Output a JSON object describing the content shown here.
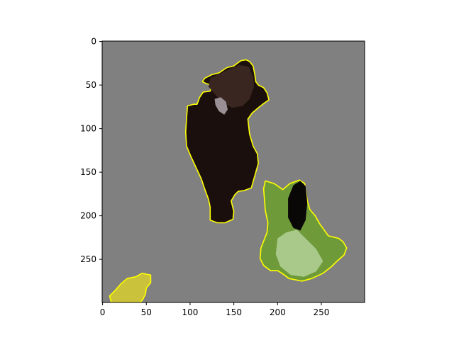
{
  "chart_data": {
    "type": "heatmap",
    "title": "",
    "xlabel": "",
    "ylabel": "",
    "xlim": [
      -0.5,
      299.5
    ],
    "ylim": [
      299.5,
      -0.5
    ],
    "y_inverted": true,
    "x_ticks": [
      0,
      50,
      100,
      150,
      200,
      250
    ],
    "y_ticks": [
      0,
      50,
      100,
      150,
      200,
      250
    ],
    "grid": false,
    "colors": {
      "background": "#808080",
      "outline": "#ffff00",
      "dark_object": "#1a0f0c",
      "brown_fur": "#2e1c16",
      "grass": "#6f9a3a",
      "grass_light": "#a9c98a",
      "beak": "#9a8f95"
    },
    "regions": [
      {
        "name": "dark-animal",
        "fill": "#1a0f0c",
        "outline": "#ffff00",
        "points": [
          [
            97,
            74
          ],
          [
            104,
            72
          ],
          [
            108,
            72
          ],
          [
            111,
            64
          ],
          [
            115,
            58
          ],
          [
            123,
            57
          ],
          [
            124,
            50
          ],
          [
            118,
            48
          ],
          [
            114,
            46
          ],
          [
            117,
            42
          ],
          [
            125,
            38
          ],
          [
            133,
            36
          ],
          [
            142,
            30
          ],
          [
            150,
            28
          ],
          [
            158,
            22
          ],
          [
            164,
            21
          ],
          [
            168,
            23
          ],
          [
            172,
            28
          ],
          [
            174,
            38
          ],
          [
            175,
            46
          ],
          [
            178,
            50
          ],
          [
            184,
            53
          ],
          [
            188,
            59
          ],
          [
            190,
            67
          ],
          [
            183,
            72
          ],
          [
            178,
            76
          ],
          [
            171,
            82
          ],
          [
            166,
            89
          ],
          [
            168,
            106
          ],
          [
            172,
            120
          ],
          [
            177,
            129
          ],
          [
            178,
            140
          ],
          [
            174,
            154
          ],
          [
            170,
            168
          ],
          [
            162,
            171
          ],
          [
            155,
            172
          ],
          [
            151,
            176
          ],
          [
            147,
            183
          ],
          [
            150,
            195
          ],
          [
            149,
            204
          ],
          [
            140,
            208
          ],
          [
            131,
            208
          ],
          [
            123,
            205
          ],
          [
            123,
            190
          ],
          [
            121,
            181
          ],
          [
            117,
            170
          ],
          [
            113,
            158
          ],
          [
            107,
            145
          ],
          [
            101,
            132
          ],
          [
            96,
            120
          ],
          [
            95,
            104
          ],
          [
            96,
            88
          ]
        ]
      },
      {
        "name": "grass-patch-right",
        "fill": "#6f9a3a",
        "outline": "#ffff00",
        "points": [
          [
            186,
            160
          ],
          [
            196,
            163
          ],
          [
            206,
            170
          ],
          [
            214,
            163
          ],
          [
            225,
            159
          ],
          [
            231,
            163
          ],
          [
            234,
            183
          ],
          [
            237,
            193
          ],
          [
            243,
            200
          ],
          [
            248,
            209
          ],
          [
            258,
            223
          ],
          [
            270,
            226
          ],
          [
            275,
            230
          ],
          [
            279,
            237
          ],
          [
            276,
            245
          ],
          [
            268,
            252
          ],
          [
            262,
            258
          ],
          [
            252,
            266
          ],
          [
            239,
            272
          ],
          [
            228,
            275
          ],
          [
            213,
            272
          ],
          [
            205,
            266
          ],
          [
            200,
            263
          ],
          [
            192,
            263
          ],
          [
            184,
            257
          ],
          [
            180,
            249
          ],
          [
            181,
            237
          ],
          [
            188,
            219
          ],
          [
            189,
            208
          ],
          [
            186,
            194
          ],
          [
            185,
            181
          ],
          [
            184,
            169
          ]
        ]
      },
      {
        "name": "grass-patch-bottom-left",
        "fill": "#c9c23a",
        "outline": "#ffff00",
        "points": [
          [
            8,
            292
          ],
          [
            15,
            285
          ],
          [
            21,
            278
          ],
          [
            28,
            272
          ],
          [
            38,
            270
          ],
          [
            45,
            266
          ],
          [
            55,
            268
          ],
          [
            55,
            277
          ],
          [
            50,
            283
          ],
          [
            49,
            290
          ],
          [
            46,
            296
          ],
          [
            43,
            299.5
          ],
          [
            10,
            299.5
          ]
        ]
      }
    ],
    "shading": [
      {
        "name": "fur-highlight",
        "fill": "#3a2620",
        "points": [
          [
            123,
            42
          ],
          [
            140,
            34
          ],
          [
            156,
            27
          ],
          [
            167,
            29
          ],
          [
            172,
            40
          ],
          [
            173,
            52
          ],
          [
            168,
            66
          ],
          [
            160,
            74
          ],
          [
            148,
            76
          ],
          [
            137,
            70
          ],
          [
            128,
            60
          ],
          [
            121,
            52
          ]
        ]
      },
      {
        "name": "beak",
        "fill": "#9a8f95",
        "points": [
          [
            128,
            66
          ],
          [
            135,
            64
          ],
          [
            141,
            69
          ],
          [
            143,
            78
          ],
          [
            139,
            84
          ],
          [
            133,
            80
          ],
          [
            129,
            73
          ]
        ]
      },
      {
        "name": "black-leaf",
        "fill": "#0a0707",
        "points": [
          [
            212,
            180
          ],
          [
            218,
            165
          ],
          [
            226,
            160
          ],
          [
            232,
            166
          ],
          [
            234,
            185
          ],
          [
            232,
            205
          ],
          [
            226,
            217
          ],
          [
            218,
            214
          ],
          [
            212,
            202
          ]
        ]
      },
      {
        "name": "light-stems",
        "fill": "#a9c98a",
        "points": [
          [
            200,
            226
          ],
          [
            210,
            219
          ],
          [
            222,
            216
          ],
          [
            232,
            226
          ],
          [
            244,
            238
          ],
          [
            252,
            252
          ],
          [
            244,
            264
          ],
          [
            230,
            270
          ],
          [
            215,
            268
          ],
          [
            203,
            258
          ],
          [
            198,
            244
          ]
        ]
      }
    ]
  }
}
